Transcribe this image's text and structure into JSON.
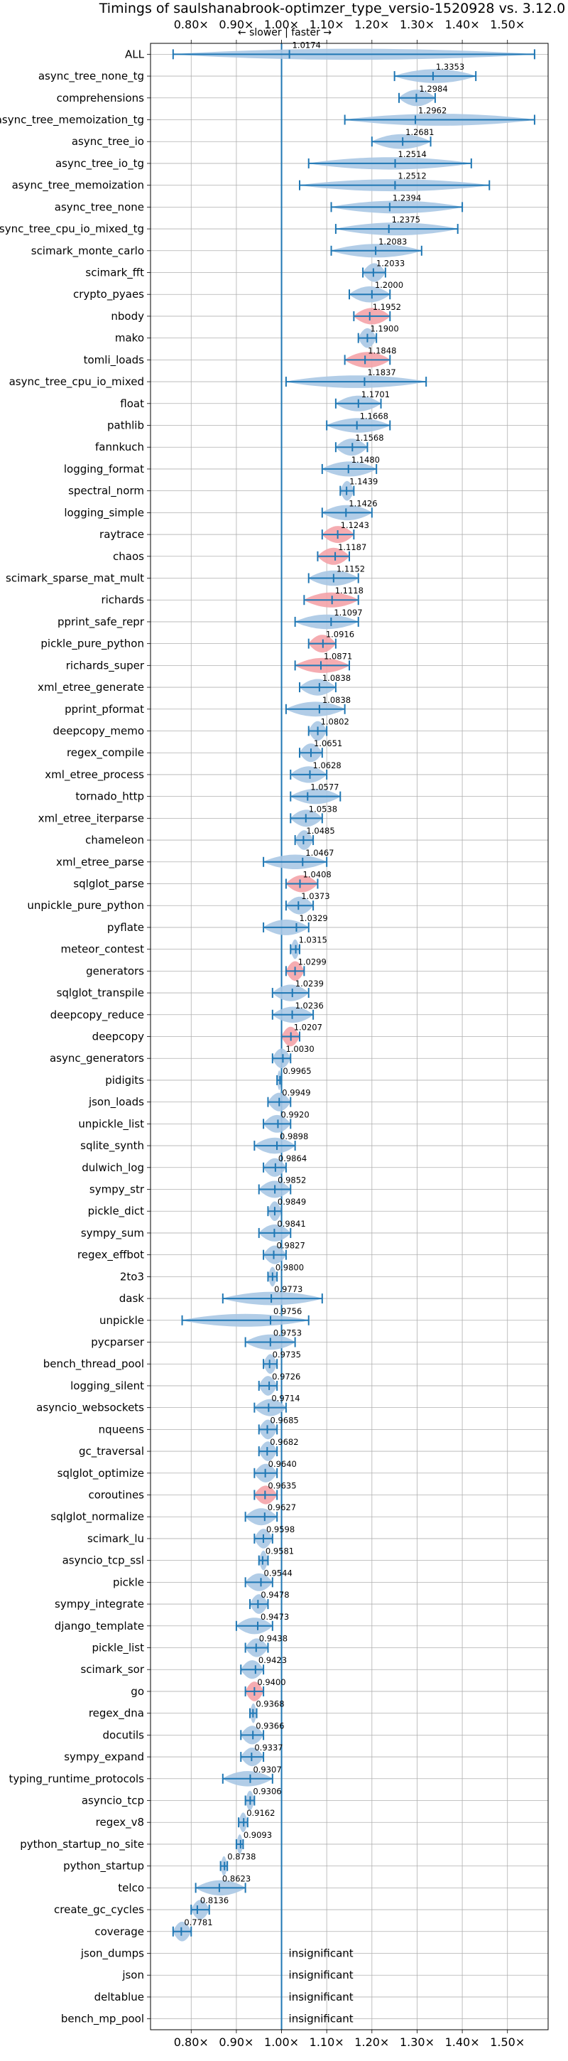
{
  "chart_data": {
    "type": "violin",
    "title": "Timings of saulshanabrook-optimzer_type_versio-1520928 vs. 3.12.0",
    "direction_note": "← slower | faster →",
    "xlim": [
      0.71,
      1.59
    ],
    "x_ticks": [
      0.8,
      0.9,
      1.0,
      1.1,
      1.2,
      1.3,
      1.4,
      1.5
    ],
    "x_tick_labels": [
      "0.80×",
      "0.90×",
      "1.00×",
      "1.10×",
      "1.20×",
      "1.30×",
      "1.40×",
      "1.50×"
    ],
    "reference_line": 1.0,
    "grid": true,
    "colors": {
      "faster": "#1f77b4",
      "violin_fast": "#aac8e4",
      "violin_slow": "#f4a3a8"
    },
    "insignificant_label": "insignificant",
    "benchmarks": [
      {
        "name": "ALL",
        "value": 1.0174,
        "label": "1.0174",
        "min": 0.76,
        "max": 1.56,
        "status": "neutral"
      },
      {
        "name": "async_tree_none_tg",
        "value": 1.3353,
        "label": "1.3353",
        "min": 1.25,
        "max": 1.43,
        "status": "faster"
      },
      {
        "name": "comprehensions",
        "value": 1.2984,
        "label": "1.2984",
        "min": 1.26,
        "max": 1.34,
        "status": "faster"
      },
      {
        "name": "async_tree_memoization_tg",
        "value": 1.2962,
        "label": "1.2962",
        "min": 1.14,
        "max": 1.56,
        "status": "faster"
      },
      {
        "name": "async_tree_io",
        "value": 1.2681,
        "label": "1.2681",
        "min": 1.2,
        "max": 1.33,
        "status": "faster"
      },
      {
        "name": "async_tree_io_tg",
        "value": 1.2514,
        "label": "1.2514",
        "min": 1.06,
        "max": 1.42,
        "status": "faster"
      },
      {
        "name": "async_tree_memoization",
        "value": 1.2512,
        "label": "1.2512",
        "min": 1.04,
        "max": 1.46,
        "status": "faster"
      },
      {
        "name": "async_tree_none",
        "value": 1.2394,
        "label": "1.2394",
        "min": 1.11,
        "max": 1.4,
        "status": "faster"
      },
      {
        "name": "async_tree_cpu_io_mixed_tg",
        "value": 1.2375,
        "label": "1.2375",
        "min": 1.12,
        "max": 1.39,
        "status": "faster"
      },
      {
        "name": "scimark_monte_carlo",
        "value": 1.2083,
        "label": "1.2083",
        "min": 1.11,
        "max": 1.31,
        "status": "faster"
      },
      {
        "name": "scimark_fft",
        "value": 1.2033,
        "label": "1.2033",
        "min": 1.18,
        "max": 1.23,
        "status": "faster"
      },
      {
        "name": "crypto_pyaes",
        "value": 1.2,
        "label": "1.2000",
        "min": 1.15,
        "max": 1.24,
        "status": "faster"
      },
      {
        "name": "nbody",
        "value": 1.1952,
        "label": "1.1952",
        "min": 1.16,
        "max": 1.24,
        "status": "slower"
      },
      {
        "name": "mako",
        "value": 1.19,
        "label": "1.1900",
        "min": 1.17,
        "max": 1.21,
        "status": "faster"
      },
      {
        "name": "tomli_loads",
        "value": 1.1848,
        "label": "1.1848",
        "min": 1.14,
        "max": 1.24,
        "status": "slower"
      },
      {
        "name": "async_tree_cpu_io_mixed",
        "value": 1.1837,
        "label": "1.1837",
        "min": 1.01,
        "max": 1.32,
        "status": "faster"
      },
      {
        "name": "float",
        "value": 1.1701,
        "label": "1.1701",
        "min": 1.12,
        "max": 1.22,
        "status": "faster"
      },
      {
        "name": "pathlib",
        "value": 1.1668,
        "label": "1.1668",
        "min": 1.1,
        "max": 1.24,
        "status": "faster"
      },
      {
        "name": "fannkuch",
        "value": 1.1568,
        "label": "1.1568",
        "min": 1.12,
        "max": 1.19,
        "status": "faster"
      },
      {
        "name": "logging_format",
        "value": 1.148,
        "label": "1.1480",
        "min": 1.09,
        "max": 1.21,
        "status": "faster"
      },
      {
        "name": "spectral_norm",
        "value": 1.1439,
        "label": "1.1439",
        "min": 1.13,
        "max": 1.16,
        "status": "faster"
      },
      {
        "name": "logging_simple",
        "value": 1.1426,
        "label": "1.1426",
        "min": 1.09,
        "max": 1.2,
        "status": "faster"
      },
      {
        "name": "raytrace",
        "value": 1.1243,
        "label": "1.1243",
        "min": 1.09,
        "max": 1.16,
        "status": "slower"
      },
      {
        "name": "chaos",
        "value": 1.1187,
        "label": "1.1187",
        "min": 1.08,
        "max": 1.15,
        "status": "slower"
      },
      {
        "name": "scimark_sparse_mat_mult",
        "value": 1.1152,
        "label": "1.1152",
        "min": 1.06,
        "max": 1.17,
        "status": "faster"
      },
      {
        "name": "richards",
        "value": 1.1118,
        "label": "1.1118",
        "min": 1.05,
        "max": 1.17,
        "status": "slower"
      },
      {
        "name": "pprint_safe_repr",
        "value": 1.1097,
        "label": "1.1097",
        "min": 1.03,
        "max": 1.17,
        "status": "faster"
      },
      {
        "name": "pickle_pure_python",
        "value": 1.0916,
        "label": "1.0916",
        "min": 1.06,
        "max": 1.12,
        "status": "slower"
      },
      {
        "name": "richards_super",
        "value": 1.0871,
        "label": "1.0871",
        "min": 1.03,
        "max": 1.15,
        "status": "slower"
      },
      {
        "name": "xml_etree_generate",
        "value": 1.0838,
        "label": "1.0838",
        "min": 1.04,
        "max": 1.12,
        "status": "faster"
      },
      {
        "name": "pprint_pformat",
        "value": 1.0838,
        "label": "1.0838",
        "min": 1.01,
        "max": 1.14,
        "status": "faster"
      },
      {
        "name": "deepcopy_memo",
        "value": 1.0802,
        "label": "1.0802",
        "min": 1.06,
        "max": 1.1,
        "status": "faster"
      },
      {
        "name": "regex_compile",
        "value": 1.0651,
        "label": "1.0651",
        "min": 1.04,
        "max": 1.09,
        "status": "faster"
      },
      {
        "name": "xml_etree_process",
        "value": 1.0628,
        "label": "1.0628",
        "min": 1.02,
        "max": 1.1,
        "status": "faster"
      },
      {
        "name": "tornado_http",
        "value": 1.0577,
        "label": "1.0577",
        "min": 1.02,
        "max": 1.13,
        "status": "faster"
      },
      {
        "name": "xml_etree_iterparse",
        "value": 1.0538,
        "label": "1.0538",
        "min": 1.02,
        "max": 1.09,
        "status": "faster"
      },
      {
        "name": "chameleon",
        "value": 1.0485,
        "label": "1.0485",
        "min": 1.03,
        "max": 1.07,
        "status": "faster"
      },
      {
        "name": "xml_etree_parse",
        "value": 1.0467,
        "label": "1.0467",
        "min": 0.96,
        "max": 1.1,
        "status": "faster"
      },
      {
        "name": "sqlglot_parse",
        "value": 1.0408,
        "label": "1.0408",
        "min": 1.01,
        "max": 1.08,
        "status": "slower"
      },
      {
        "name": "unpickle_pure_python",
        "value": 1.0373,
        "label": "1.0373",
        "min": 1.01,
        "max": 1.07,
        "status": "faster"
      },
      {
        "name": "pyflate",
        "value": 1.0329,
        "label": "1.0329",
        "min": 0.96,
        "max": 1.06,
        "status": "faster"
      },
      {
        "name": "meteor_contest",
        "value": 1.0315,
        "label": "1.0315",
        "min": 1.02,
        "max": 1.04,
        "status": "faster"
      },
      {
        "name": "generators",
        "value": 1.0299,
        "label": "1.0299",
        "min": 1.01,
        "max": 1.05,
        "status": "slower"
      },
      {
        "name": "sqlglot_transpile",
        "value": 1.0239,
        "label": "1.0239",
        "min": 0.98,
        "max": 1.06,
        "status": "faster"
      },
      {
        "name": "deepcopy_reduce",
        "value": 1.0236,
        "label": "1.0236",
        "min": 0.98,
        "max": 1.07,
        "status": "faster"
      },
      {
        "name": "deepcopy",
        "value": 1.0207,
        "label": "1.0207",
        "min": 1.0,
        "max": 1.04,
        "status": "slower"
      },
      {
        "name": "async_generators",
        "value": 1.003,
        "label": "1.0030",
        "min": 0.98,
        "max": 1.02,
        "status": "faster"
      },
      {
        "name": "pidigits",
        "value": 0.9965,
        "label": "0.9965",
        "min": 0.99,
        "max": 1.0,
        "status": "faster"
      },
      {
        "name": "json_loads",
        "value": 0.9949,
        "label": "0.9949",
        "min": 0.97,
        "max": 1.02,
        "status": "faster"
      },
      {
        "name": "unpickle_list",
        "value": 0.992,
        "label": "0.9920",
        "min": 0.96,
        "max": 1.02,
        "status": "faster"
      },
      {
        "name": "sqlite_synth",
        "value": 0.9898,
        "label": "0.9898",
        "min": 0.94,
        "max": 1.03,
        "status": "faster"
      },
      {
        "name": "dulwich_log",
        "value": 0.9864,
        "label": "0.9864",
        "min": 0.96,
        "max": 1.01,
        "status": "faster"
      },
      {
        "name": "sympy_str",
        "value": 0.9852,
        "label": "0.9852",
        "min": 0.95,
        "max": 1.02,
        "status": "faster"
      },
      {
        "name": "pickle_dict",
        "value": 0.9849,
        "label": "0.9849",
        "min": 0.97,
        "max": 1.0,
        "status": "faster"
      },
      {
        "name": "sympy_sum",
        "value": 0.9841,
        "label": "0.9841",
        "min": 0.95,
        "max": 1.02,
        "status": "faster"
      },
      {
        "name": "regex_effbot",
        "value": 0.9827,
        "label": "0.9827",
        "min": 0.96,
        "max": 1.01,
        "status": "faster"
      },
      {
        "name": "2to3",
        "value": 0.98,
        "label": "0.9800",
        "min": 0.97,
        "max": 0.99,
        "status": "faster"
      },
      {
        "name": "dask",
        "value": 0.9773,
        "label": "0.9773",
        "min": 0.87,
        "max": 1.09,
        "status": "faster"
      },
      {
        "name": "unpickle",
        "value": 0.9756,
        "label": "0.9756",
        "min": 0.78,
        "max": 1.06,
        "status": "faster"
      },
      {
        "name": "pycparser",
        "value": 0.9753,
        "label": "0.9753",
        "min": 0.92,
        "max": 1.03,
        "status": "faster"
      },
      {
        "name": "bench_thread_pool",
        "value": 0.9735,
        "label": "0.9735",
        "min": 0.96,
        "max": 0.99,
        "status": "faster"
      },
      {
        "name": "logging_silent",
        "value": 0.9726,
        "label": "0.9726",
        "min": 0.95,
        "max": 0.99,
        "status": "faster"
      },
      {
        "name": "asyncio_websockets",
        "value": 0.9714,
        "label": "0.9714",
        "min": 0.94,
        "max": 1.01,
        "status": "faster"
      },
      {
        "name": "nqueens",
        "value": 0.9685,
        "label": "0.9685",
        "min": 0.95,
        "max": 0.99,
        "status": "faster"
      },
      {
        "name": "gc_traversal",
        "value": 0.9682,
        "label": "0.9682",
        "min": 0.95,
        "max": 0.99,
        "status": "faster"
      },
      {
        "name": "sqlglot_optimize",
        "value": 0.964,
        "label": "0.9640",
        "min": 0.94,
        "max": 0.99,
        "status": "faster"
      },
      {
        "name": "coroutines",
        "value": 0.9635,
        "label": "0.9635",
        "min": 0.94,
        "max": 0.99,
        "status": "slower"
      },
      {
        "name": "sqlglot_normalize",
        "value": 0.9627,
        "label": "0.9627",
        "min": 0.92,
        "max": 0.99,
        "status": "faster"
      },
      {
        "name": "scimark_lu",
        "value": 0.9598,
        "label": "0.9598",
        "min": 0.94,
        "max": 0.98,
        "status": "faster"
      },
      {
        "name": "asyncio_tcp_ssl",
        "value": 0.9581,
        "label": "0.9581",
        "min": 0.95,
        "max": 0.97,
        "status": "faster"
      },
      {
        "name": "pickle",
        "value": 0.9544,
        "label": "0.9544",
        "min": 0.92,
        "max": 0.98,
        "status": "faster"
      },
      {
        "name": "sympy_integrate",
        "value": 0.9478,
        "label": "0.9478",
        "min": 0.93,
        "max": 0.97,
        "status": "faster"
      },
      {
        "name": "django_template",
        "value": 0.9473,
        "label": "0.9473",
        "min": 0.9,
        "max": 0.98,
        "status": "faster"
      },
      {
        "name": "pickle_list",
        "value": 0.9438,
        "label": "0.9438",
        "min": 0.92,
        "max": 0.97,
        "status": "faster"
      },
      {
        "name": "scimark_sor",
        "value": 0.9423,
        "label": "0.9423",
        "min": 0.91,
        "max": 0.96,
        "status": "faster"
      },
      {
        "name": "go",
        "value": 0.94,
        "label": "0.9400",
        "min": 0.92,
        "max": 0.96,
        "status": "slower"
      },
      {
        "name": "regex_dna",
        "value": 0.9368,
        "label": "0.9368",
        "min": 0.93,
        "max": 0.945,
        "status": "faster"
      },
      {
        "name": "docutils",
        "value": 0.9366,
        "label": "0.9366",
        "min": 0.91,
        "max": 0.96,
        "status": "faster"
      },
      {
        "name": "sympy_expand",
        "value": 0.9337,
        "label": "0.9337",
        "min": 0.91,
        "max": 0.96,
        "status": "faster"
      },
      {
        "name": "typing_runtime_protocols",
        "value": 0.9307,
        "label": "0.9307",
        "min": 0.87,
        "max": 0.98,
        "status": "faster"
      },
      {
        "name": "asyncio_tcp",
        "value": 0.9306,
        "label": "0.9306",
        "min": 0.92,
        "max": 0.94,
        "status": "faster"
      },
      {
        "name": "regex_v8",
        "value": 0.9162,
        "label": "0.9162",
        "min": 0.905,
        "max": 0.925,
        "status": "faster"
      },
      {
        "name": "python_startup_no_site",
        "value": 0.9093,
        "label": "0.9093",
        "min": 0.9,
        "max": 0.915,
        "status": "faster"
      },
      {
        "name": "python_startup",
        "value": 0.8738,
        "label": "0.8738",
        "min": 0.865,
        "max": 0.88,
        "status": "faster"
      },
      {
        "name": "telco",
        "value": 0.8623,
        "label": "0.8623",
        "min": 0.81,
        "max": 0.92,
        "status": "faster"
      },
      {
        "name": "create_gc_cycles",
        "value": 0.8136,
        "label": "0.8136",
        "min": 0.8,
        "max": 0.84,
        "status": "faster"
      },
      {
        "name": "coverage",
        "value": 0.7781,
        "label": "0.7781",
        "min": 0.76,
        "max": 0.8,
        "status": "faster"
      },
      {
        "name": "json_dumps",
        "value": null,
        "label": "",
        "status": "insignificant"
      },
      {
        "name": "json",
        "value": null,
        "label": "",
        "status": "insignificant"
      },
      {
        "name": "deltablue",
        "value": null,
        "label": "",
        "status": "insignificant"
      },
      {
        "name": "bench_mp_pool",
        "value": null,
        "label": "",
        "status": "insignificant"
      }
    ]
  }
}
